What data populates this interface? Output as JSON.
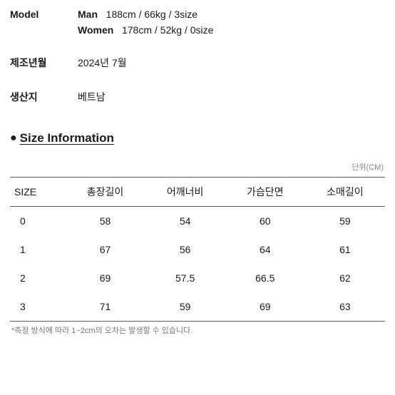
{
  "info": {
    "model_label": "Model",
    "model_man_label": "Man",
    "model_man_value": "188cm / 66kg / 3size",
    "model_women_label": "Women",
    "model_women_value": "178cm / 52kg / 0size",
    "mfg_label": "제조년월",
    "mfg_value": "2024년 7월",
    "origin_label": "생산지",
    "origin_value": "베트남"
  },
  "size_section": {
    "heading": "Size Information",
    "unit_label": "단위(CM)",
    "columns": [
      "SIZE",
      "총장길이",
      "어깨너비",
      "가슴단면",
      "소매길이"
    ],
    "rows": [
      [
        "0",
        "58",
        "54",
        "60",
        "59"
      ],
      [
        "1",
        "67",
        "56",
        "64",
        "61"
      ],
      [
        "2",
        "69",
        "57.5",
        "66.5",
        "62"
      ],
      [
        "3",
        "71",
        "59",
        "69",
        "63"
      ]
    ],
    "footnote": "*측정 방식에 따라 1~2cm의 오차는 발생할 수 있습니다."
  }
}
